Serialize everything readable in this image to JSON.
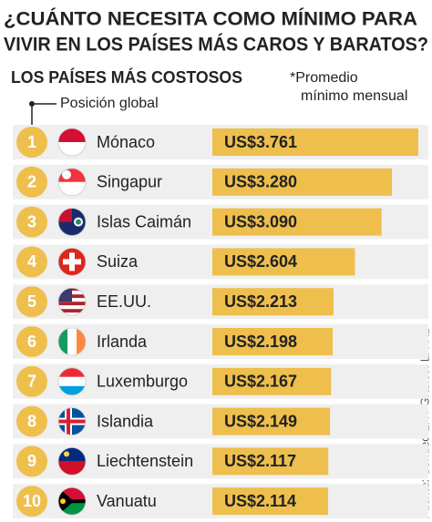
{
  "chart_data": {
    "type": "bar",
    "title": [
      "¿CUÁNTO NECESITA COMO MÍNIMO PARA",
      "VIVIR EN LOS PAÍSES MÁS CAROS Y BARATOS?"
    ],
    "subtitle": "LOS PAÍSES MÁS COSTOSOS",
    "note": [
      "*Promedio",
      "mínimo mensual"
    ],
    "rank_label": "Posición global",
    "ranks": [
      "1",
      "2",
      "3",
      "4",
      "5",
      "6",
      "7",
      "8",
      "9",
      "10"
    ],
    "categories": [
      "Mónaco",
      "Singapur",
      "Islas Caimán",
      "Suiza",
      "EE.UU.",
      "Irlanda",
      "Luxemburgo",
      "Islandia",
      "Liechtenstein",
      "Vanuatu"
    ],
    "values": [
      3761,
      3280,
      3090,
      2604,
      2213,
      2198,
      2167,
      2149,
      2117,
      2114
    ],
    "value_labels": [
      "US$3.761",
      "US$3.280",
      "US$3.090",
      "US$2.604",
      "US$2.213",
      "US$2.198",
      "US$2.167",
      "US$2.149",
      "US$2.117",
      "US$2.114"
    ],
    "color": "#eebf4c",
    "source": "Fuente: Sondeo LR / Gráfico: LR-AL"
  }
}
